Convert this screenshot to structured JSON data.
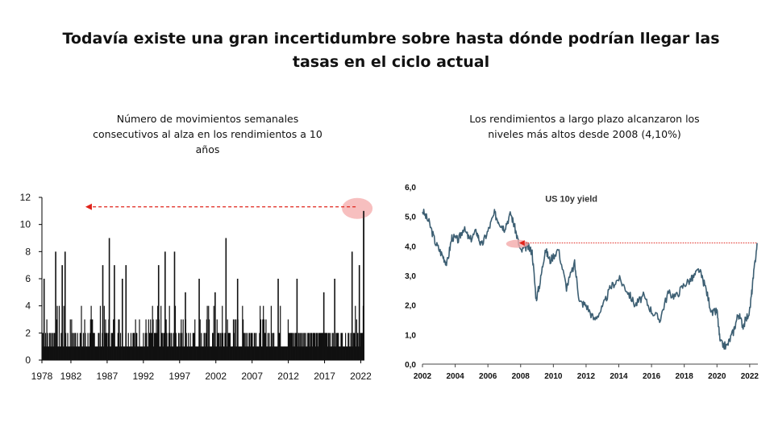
{
  "slide": {
    "title_line1": "Todavía existe una gran incertidumbre sobre hasta dónde podrían llegar las",
    "title_line2": "tasas en el ciclo actual"
  },
  "left_chart": {
    "title_line1": "Número de movimientos semanales",
    "title_line2": "consecutivos al alza en los rendimientos a 10",
    "title_line3": "años"
  },
  "right_chart": {
    "title_line1": "Los rendimientos a largo plazo alcanzaron los",
    "title_line2": "niveles más altos desde 2008 (4,10%)"
  },
  "colors": {
    "bars": "#111111",
    "line": "#3d5f73",
    "arrow": "#e0231a",
    "highlight": "#f4aaaa"
  },
  "chart_data": [
    {
      "type": "bar",
      "title": "Número de movimientos semanales consecutivos al alza en los rendimientos a 10 años",
      "xlabel": "",
      "ylabel": "",
      "xlim": [
        1978,
        2022.5
      ],
      "ylim": [
        0,
        12
      ],
      "x_ticks": [
        "1978",
        "1982",
        "1987",
        "1992",
        "1997",
        "2002",
        "2007",
        "2012",
        "2017",
        "2022"
      ],
      "y_ticks": [
        "0",
        "2",
        "4",
        "6",
        "8",
        "10",
        "12"
      ],
      "peaks": [
        {
          "x": 1978.3,
          "y": 6
        },
        {
          "x": 1979.9,
          "y": 8
        },
        {
          "x": 1981.2,
          "y": 8
        },
        {
          "x": 1980.8,
          "y": 7
        },
        {
          "x": 1986.4,
          "y": 7
        },
        {
          "x": 1987.3,
          "y": 9
        },
        {
          "x": 1988.0,
          "y": 7
        },
        {
          "x": 1989.1,
          "y": 6
        },
        {
          "x": 1989.6,
          "y": 7
        },
        {
          "x": 1994.1,
          "y": 7
        },
        {
          "x": 1995.0,
          "y": 8
        },
        {
          "x": 1996.3,
          "y": 8
        },
        {
          "x": 1997.8,
          "y": 5
        },
        {
          "x": 1999.7,
          "y": 6
        },
        {
          "x": 2001.9,
          "y": 5
        },
        {
          "x": 2003.4,
          "y": 9
        },
        {
          "x": 2005.0,
          "y": 6
        },
        {
          "x": 2010.6,
          "y": 6
        },
        {
          "x": 2013.2,
          "y": 6
        },
        {
          "x": 2016.9,
          "y": 5
        },
        {
          "x": 2018.4,
          "y": 6
        },
        {
          "x": 2020.8,
          "y": 8
        },
        {
          "x": 2021.8,
          "y": 7
        },
        {
          "x": 2022.4,
          "y": 11
        }
      ],
      "annotation": {
        "type": "arrow",
        "value": 11.3,
        "from_x": 2022.4,
        "to_x": 1984
      }
    },
    {
      "type": "line",
      "title": "US 10y yield",
      "xlabel": "",
      "ylabel": "",
      "xlim": [
        2002,
        2022.5
      ],
      "ylim": [
        0,
        6
      ],
      "x_ticks": [
        "2002",
        "2004",
        "2006",
        "2008",
        "2010",
        "2012",
        "2014",
        "2016",
        "2018",
        "2020",
        "2022"
      ],
      "y_ticks": [
        "0,0",
        "1,0",
        "2,0",
        "3,0",
        "4,0",
        "5,0",
        "6,0"
      ],
      "series": [
        {
          "x": [
            2002.0,
            2002.4,
            2002.8,
            2003.2,
            2003.5,
            2003.8,
            2004.2,
            2004.5,
            2004.9,
            2005.3,
            2005.6,
            2006.0,
            2006.4,
            2006.7,
            2007.0,
            2007.4,
            2007.7,
            2008.0,
            2008.4,
            2008.7,
            2008.95,
            2009.2,
            2009.5,
            2009.8,
            2010.3,
            2010.8,
            2011.3,
            2011.6,
            2012.0,
            2012.5,
            2013.0,
            2013.5,
            2014.0,
            2014.5,
            2015.0,
            2015.5,
            2016.0,
            2016.5,
            2017.0,
            2017.5,
            2018.0,
            2018.5,
            2018.9,
            2019.3,
            2019.7,
            2020.0,
            2020.2,
            2020.6,
            2021.0,
            2021.3,
            2021.6,
            2022.0,
            2022.2,
            2022.45
          ],
          "y": [
            5.2,
            4.8,
            4.1,
            3.7,
            3.4,
            4.3,
            4.2,
            4.6,
            4.2,
            4.5,
            4.0,
            4.5,
            5.1,
            4.8,
            4.6,
            5.1,
            4.5,
            3.8,
            4.0,
            3.8,
            2.2,
            2.8,
            3.9,
            3.5,
            3.9,
            2.6,
            3.4,
            2.1,
            2.0,
            1.5,
            1.9,
            2.6,
            2.9,
            2.5,
            2.0,
            2.3,
            1.8,
            1.5,
            2.4,
            2.3,
            2.7,
            2.9,
            3.2,
            2.6,
            1.7,
            1.8,
            0.7,
            0.6,
            1.1,
            1.7,
            1.3,
            1.8,
            2.8,
            4.1
          ]
        }
      ],
      "annotation": {
        "type": "arrow",
        "value": 4.1,
        "from_x": 2022.45,
        "to_x": 2008
      }
    }
  ]
}
